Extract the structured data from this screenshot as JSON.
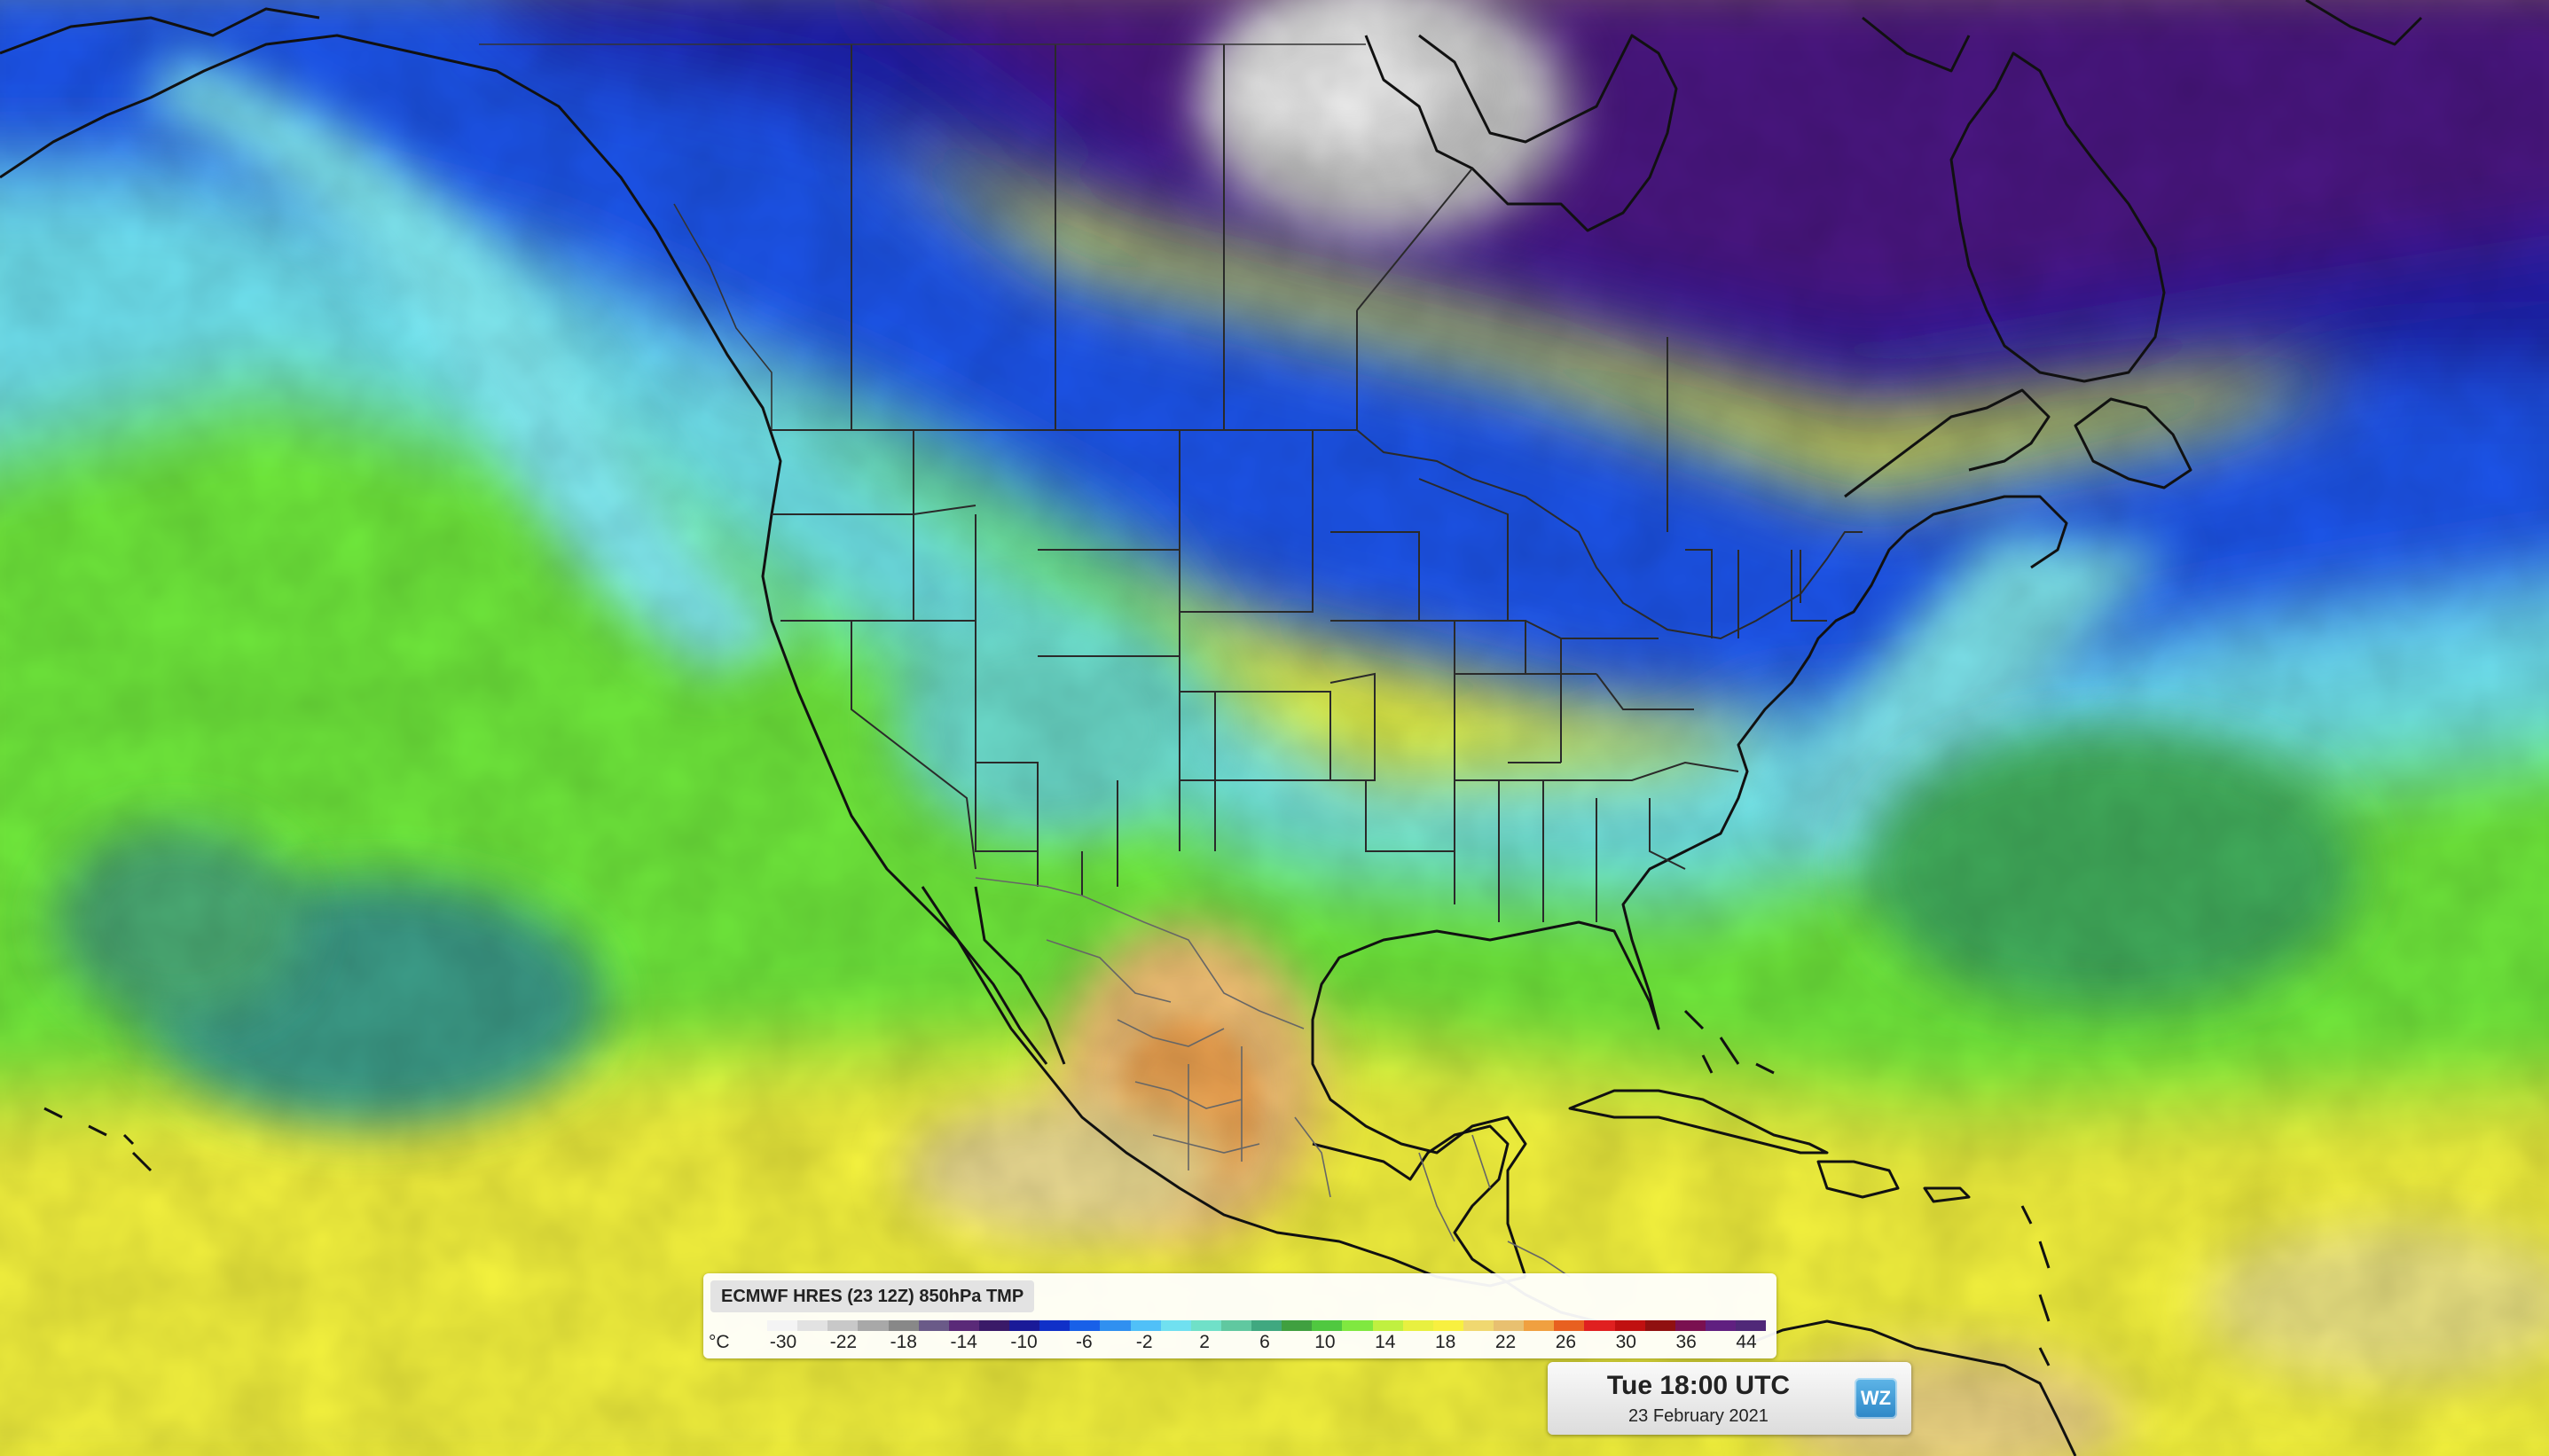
{
  "legend": {
    "title": "ECMWF HRES (23 12Z) 850hPa TMP",
    "unit": "°C",
    "ticks": [
      "-30",
      "-22",
      "-18",
      "-14",
      "-10",
      "-6",
      "-2",
      "2",
      "6",
      "10",
      "14",
      "18",
      "22",
      "26",
      "30",
      "36",
      "44"
    ],
    "colors": [
      "#f4f4f4",
      "#e2e2e2",
      "#c8c8c8",
      "#a8a8a8",
      "#888888",
      "#6a5a88",
      "#5a2a78",
      "#3a1a68",
      "#1a1a98",
      "#1030c8",
      "#1860e8",
      "#3090f0",
      "#50c0f8",
      "#70e0f0",
      "#70e0c8",
      "#60c8a0",
      "#40a880",
      "#40a040",
      "#50c840",
      "#80e840",
      "#c0f040",
      "#e8f040",
      "#f8f040",
      "#f0d870",
      "#e8c070",
      "#f0a040",
      "#e86020",
      "#e02020",
      "#c01010",
      "#901010",
      "#7a1050",
      "#602080",
      "#502878"
    ]
  },
  "time": {
    "main": "Tue 18:00 UTC",
    "date": "23 February 2021"
  },
  "logo": {
    "text": "WZ"
  }
}
